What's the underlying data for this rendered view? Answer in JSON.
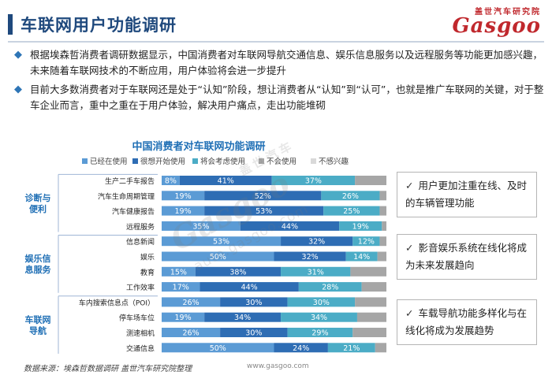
{
  "header": {
    "title": "车联网用户功能调研",
    "logo_top": "盖世汽车研究院",
    "logo_main": "Gasgoo"
  },
  "bullets": [
    "根据埃森哲消费者调研数据显示，中国消费者对车联网导航交通信息、娱乐信息服务以及远程服务等功能更加感兴趣，未来随着车联网技术的不断应用，用户体验将会进一步提升",
    "目前大多数消费者对于车联网还是处于“认知”阶段，想让消费者从“认知”到“认可”，也就是推广车联网的关键，对于整车企业而言，重中之重在于用户体验，解决用户痛点，走出功能堆砌"
  ],
  "chart_data": {
    "type": "bar",
    "orientation": "horizontal",
    "stacked": true,
    "title": "中国消费者对车联网功能调研",
    "legend_position": "top",
    "categories": [
      "生产二手车报告",
      "汽车生命周期管理",
      "汽车健康报告",
      "远程服务",
      "信息新闻",
      "娱乐",
      "教育",
      "工作效率",
      "车内搜索信息点（POI）",
      "停车场车位",
      "测速相机",
      "交通信息"
    ],
    "groups": [
      {
        "name": "诊断与便利",
        "categories": [
          "生产二手车报告",
          "汽车生命周期管理",
          "汽车健康报告",
          "远程服务"
        ]
      },
      {
        "name": "娱乐信息服务",
        "categories": [
          "信息新闻",
          "娱乐",
          "教育",
          "工作效率"
        ]
      },
      {
        "name": "车联网导航",
        "categories": [
          "车内搜索信息点（POI）",
          "停车场车位",
          "测速相机",
          "交通信息"
        ]
      }
    ],
    "series": [
      {
        "name": "已经在使用",
        "color": "#5b9bd5",
        "values": [
          8,
          19,
          19,
          35,
          53,
          50,
          15,
          17,
          26,
          19,
          26,
          50
        ],
        "labels": [
          "8%",
          "19%",
          "19%",
          "35%",
          "53%",
          "50%",
          "15%",
          "17%",
          "26%",
          "19%",
          "26%",
          "50%"
        ]
      },
      {
        "name": "很想开始使用",
        "color": "#2e6db4",
        "values": [
          41,
          52,
          53,
          44,
          32,
          32,
          38,
          44,
          30,
          34,
          30,
          24
        ],
        "labels": [
          "41%",
          "52%",
          "53%",
          "44%",
          "32%",
          "32%",
          "38%",
          "44%",
          "30%",
          "34%",
          "30%",
          "24%"
        ]
      },
      {
        "name": "将会考虑使用",
        "color": "#4bacc6",
        "values": [
          37,
          26,
          25,
          19,
          12,
          14,
          31,
          28,
          30,
          34,
          29,
          21
        ],
        "labels": [
          "37%",
          "26%",
          "25%",
          "19%",
          "12%",
          "14%",
          "31%",
          "28%",
          "30%",
          "34%",
          "29%",
          "21%"
        ]
      },
      {
        "name": "不会使用",
        "color": "#a6a6a6",
        "values": [
          14,
          3,
          3,
          2,
          3,
          4,
          16,
          11,
          14,
          13,
          15,
          5
        ],
        "labels": [
          "",
          "",
          "",
          "",
          "",
          "",
          "",
          "",
          "",
          "",
          "",
          ""
        ]
      },
      {
        "name": "不感兴趣",
        "color": "#d9d9d9",
        "values": [
          0,
          0,
          0,
          0,
          0,
          0,
          0,
          0,
          0,
          0,
          0,
          0
        ],
        "labels": [
          "",
          "",
          "",
          "",
          "",
          "",
          "",
          "",
          "",
          "",
          "",
          ""
        ]
      }
    ],
    "xlim": [
      0,
      100
    ]
  },
  "notes": [
    "用户更加注重在线、及时的车辆管理功能",
    "影音娱乐系统在线化将成为未来发展趋向",
    "车载导航功能多样化与在线化将成为发展趋势"
  ],
  "footer": {
    "source": "数据来源：埃森哲数据调研  盖世汽车研究院整理",
    "url": "www.gasgoo.com"
  },
  "watermark": {
    "main": "Gasgoo",
    "url": "auto.gasgoo.com",
    "cn": "盖世汽车"
  },
  "icons": {
    "bullet": "diamond-icon",
    "check": "check-icon"
  }
}
